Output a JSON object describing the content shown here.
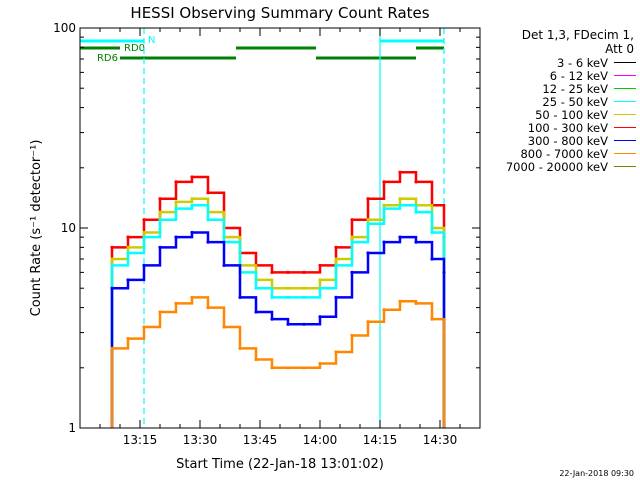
{
  "chart_data": {
    "type": "line",
    "title": "HESSI Observing Summary Count Rates",
    "xlabel": "Start Time (22-Jan-18 13:01:02)",
    "ylabel": "Count Rate (s⁻¹ detector⁻¹)",
    "yscale": "log",
    "ylim": [
      1,
      100
    ],
    "y_ticks": [
      1,
      10,
      100
    ],
    "y_tick_labels": [
      "1",
      "10",
      "100"
    ],
    "xlim_minutes_from_1300": [
      0,
      100
    ],
    "x_ticks": [
      "13:15",
      "13:30",
      "13:45",
      "14:00",
      "14:15",
      "14:30"
    ],
    "x_tick_minutes": [
      15,
      30,
      45,
      60,
      75,
      90
    ],
    "legend": {
      "header": [
        "Det 1,3, FDecim 1,",
        "Att 0"
      ],
      "placement": "right-outside",
      "entries": [
        {
          "label": "3 - 6 keV",
          "color": "#000000"
        },
        {
          "label": "6 - 12 keV",
          "color": "#ff00ff"
        },
        {
          "label": "12 - 25 keV",
          "color": "#00cc00"
        },
        {
          "label": "25 - 50 keV",
          "color": "#00ffff"
        },
        {
          "label": "50 - 100 keV",
          "color": "#cccc00"
        },
        {
          "label": "100 - 300 keV",
          "color": "#ff0000"
        },
        {
          "label": "300 - 800 keV",
          "color": "#0000ff"
        },
        {
          "label": "800 - 7000 keV",
          "color": "#ff8800"
        },
        {
          "label": "7000 - 20000 keV",
          "color": "#808000"
        }
      ]
    },
    "series": [
      {
        "name": "100 - 300 keV",
        "color": "#ff0000",
        "x": [
          8,
          12,
          16,
          20,
          24,
          28,
          32,
          36,
          40,
          44,
          48,
          52,
          56,
          60,
          64,
          68,
          72,
          76,
          80,
          84,
          88,
          91
        ],
        "y": [
          8,
          9,
          11,
          14,
          17,
          18,
          15,
          10,
          7.5,
          6.5,
          6,
          6,
          6,
          6.5,
          8,
          11,
          14,
          17,
          19,
          17,
          13,
          9
        ]
      },
      {
        "name": "50 - 100 keV",
        "color": "#cccc00",
        "x": [
          8,
          12,
          16,
          20,
          24,
          28,
          32,
          36,
          40,
          44,
          48,
          52,
          56,
          60,
          64,
          68,
          72,
          76,
          80,
          84,
          88,
          91
        ],
        "y": [
          7,
          8,
          9.5,
          12,
          13.5,
          14,
          12,
          9,
          6.5,
          5.5,
          5,
          5,
          5,
          5.5,
          7,
          9,
          11,
          13,
          14,
          13,
          10,
          8
        ]
      },
      {
        "name": "25 - 50 keV",
        "color": "#00ffff",
        "x": [
          8,
          12,
          16,
          20,
          24,
          28,
          32,
          36,
          40,
          44,
          48,
          52,
          56,
          60,
          64,
          68,
          72,
          76,
          80,
          84,
          88,
          91
        ],
        "y": [
          6.5,
          7.5,
          9,
          11,
          12.5,
          13,
          11,
          8.5,
          6,
          5,
          4.5,
          4.5,
          4.5,
          5,
          6.5,
          8.5,
          10.5,
          12.5,
          13,
          12,
          9.5,
          7.5
        ]
      },
      {
        "name": "300 - 800 keV",
        "color": "#0000ff",
        "x": [
          8,
          12,
          16,
          20,
          24,
          28,
          32,
          36,
          40,
          44,
          48,
          52,
          56,
          60,
          64,
          68,
          72,
          76,
          80,
          84,
          88,
          91
        ],
        "y": [
          5,
          5.5,
          6.5,
          8,
          9,
          9.5,
          8.5,
          6.5,
          4.5,
          3.8,
          3.5,
          3.3,
          3.3,
          3.6,
          4.5,
          6,
          7.5,
          8.5,
          9,
          8.5,
          7,
          6
        ]
      },
      {
        "name": "800 - 7000 keV",
        "color": "#ff8800",
        "x": [
          8,
          12,
          16,
          20,
          24,
          28,
          32,
          36,
          40,
          44,
          48,
          52,
          56,
          60,
          64,
          68,
          72,
          76,
          80,
          84,
          88,
          91
        ],
        "y": [
          2.5,
          2.8,
          3.2,
          3.8,
          4.2,
          4.5,
          4,
          3.2,
          2.5,
          2.2,
          2,
          2,
          2,
          2.1,
          2.4,
          2.9,
          3.4,
          3.9,
          4.3,
          4.2,
          3.5,
          3
        ]
      }
    ],
    "mode_bars": [
      {
        "label": "N",
        "color": "#00ffff",
        "row": 1,
        "segments": [
          [
            0,
            16
          ],
          [
            75,
            91
          ]
        ]
      },
      {
        "label": "RD0",
        "color": "#008000",
        "row": 2,
        "segments": [
          [
            0,
            10
          ],
          [
            39,
            59
          ],
          [
            84,
            91
          ]
        ]
      },
      {
        "label": "RD6",
        "color": "#008000",
        "row": 3,
        "segments": [
          [
            10,
            39
          ],
          [
            59,
            84
          ]
        ]
      }
    ],
    "vertical_lines": [
      {
        "x": 16,
        "color": "#00ffff",
        "style": "dashed"
      },
      {
        "x": 75,
        "color": "#00ffff",
        "style": "solid"
      },
      {
        "x": 91,
        "color": "#00ffff",
        "style": "dashed"
      }
    ],
    "timestamp": "22-Jan-2018 09:30"
  }
}
